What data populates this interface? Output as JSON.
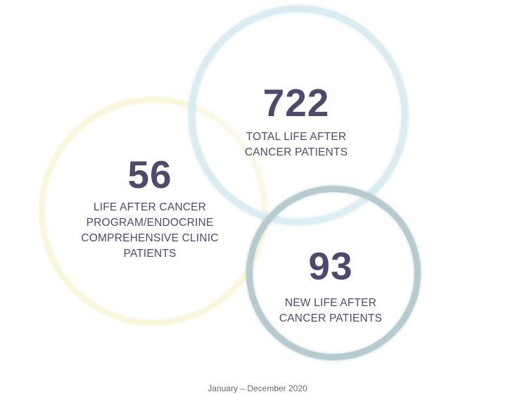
{
  "stats": {
    "total": {
      "value": "722",
      "label_line1": "TOTAL LIFE AFTER",
      "label_line2": "CANCER PATIENTS"
    },
    "endocrine": {
      "value": "56",
      "label_line1": "LIFE AFTER CANCER",
      "label_line2": "PROGRAM/ENDOCRINE",
      "label_line3": "COMPREHENSIVE CLINIC",
      "label_line4": "PATIENTS"
    },
    "new": {
      "value": "93",
      "label_line1": "NEW LIFE AFTER",
      "label_line2": "CANCER PATIENTS"
    }
  },
  "footer": {
    "date_range": "January – December 2020"
  },
  "colors": {
    "text": "#4d4a6b",
    "circle_yellow": "#faf6dc",
    "circle_blue": "#d9ecf1",
    "circle_teal": "#b6cbd0"
  }
}
